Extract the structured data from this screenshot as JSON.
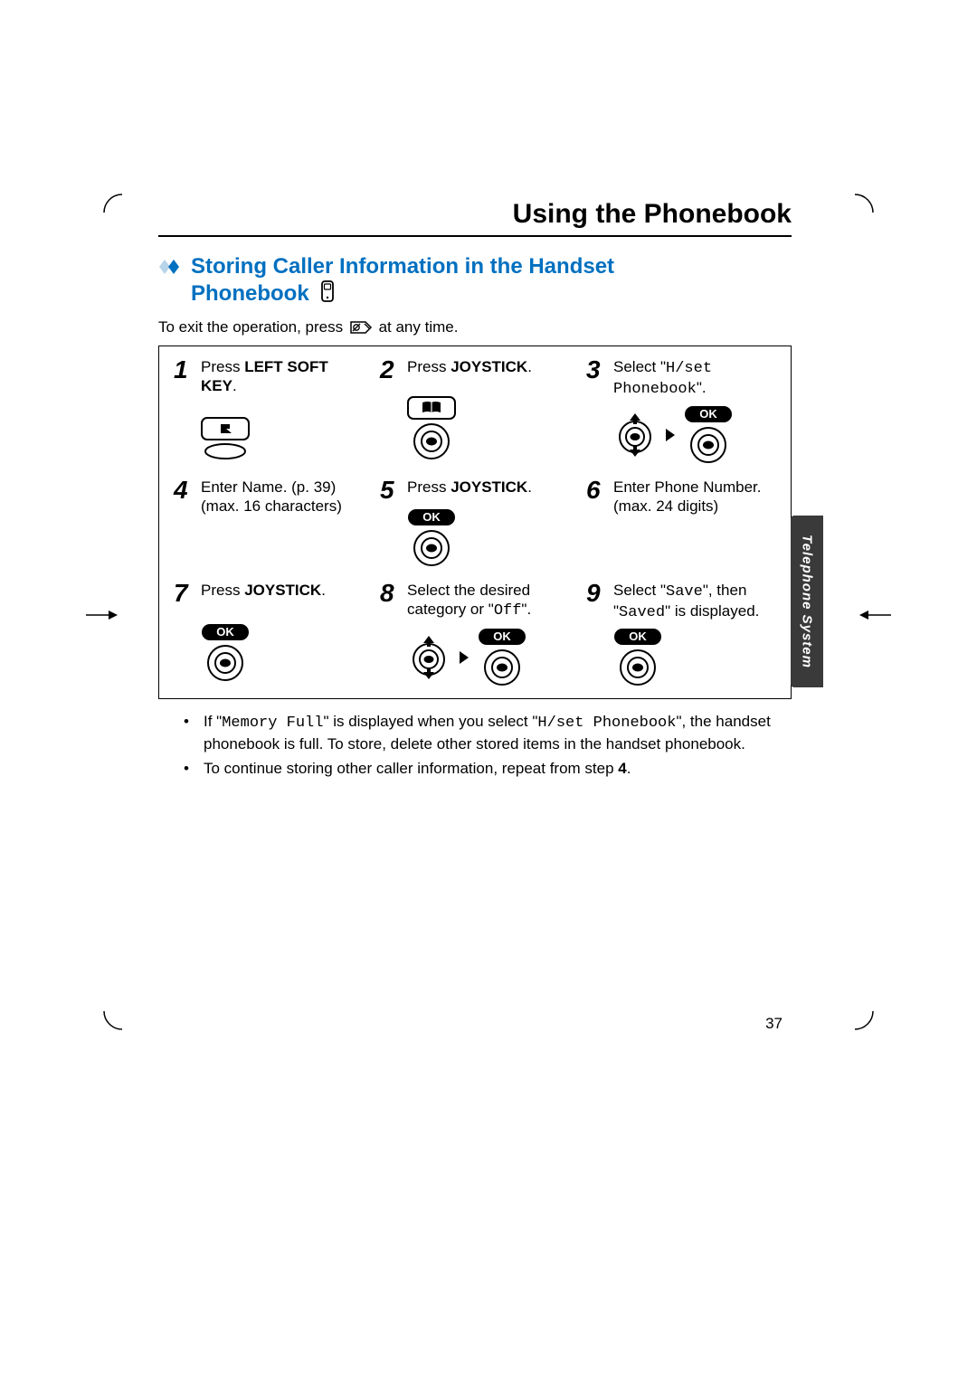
{
  "header": {
    "title": "Using the Phonebook"
  },
  "section": {
    "heading_line1": "Storing Caller Information in the Handset",
    "heading_line2": "Phonebook",
    "diamond_colors": [
      "#0070c0",
      "#b7d4ea"
    ],
    "exit_note_pre": "To exit the operation, press ",
    "exit_note_post": " at any time."
  },
  "steps": [
    {
      "n": "1",
      "text_parts": [
        {
          "t": "Press "
        },
        {
          "t": "LEFT SOFT KEY",
          "bold": true
        },
        {
          "t": "."
        }
      ],
      "icon": "softkey"
    },
    {
      "n": "2",
      "text_parts": [
        {
          "t": "Press "
        },
        {
          "t": "JOYSTICK",
          "bold": true
        },
        {
          "t": "."
        }
      ],
      "icon": "book_joy"
    },
    {
      "n": "3",
      "text_parts": [
        {
          "t": "Select \""
        },
        {
          "t": "H/set Phonebook",
          "mono": true
        },
        {
          "t": "\"."
        }
      ],
      "icon": "updown_ok"
    },
    {
      "n": "4",
      "text_parts": [
        {
          "t": "Enter Name. (p. 39) (max. 16 characters)"
        }
      ],
      "icon": ""
    },
    {
      "n": "5",
      "text_parts": [
        {
          "t": "Press "
        },
        {
          "t": "JOYSTICK",
          "bold": true
        },
        {
          "t": "."
        }
      ],
      "icon": "ok_joy"
    },
    {
      "n": "6",
      "text_parts": [
        {
          "t": "Enter Phone Number."
        },
        {
          "t": " (max. 24 digits)"
        }
      ],
      "icon": ""
    },
    {
      "n": "7",
      "text_parts": [
        {
          "t": "Press "
        },
        {
          "t": "JOYSTICK",
          "bold": true
        },
        {
          "t": "."
        }
      ],
      "icon": "ok_joy"
    },
    {
      "n": "8",
      "text_parts": [
        {
          "t": "Select the desired category or \""
        },
        {
          "t": "Off",
          "mono": true
        },
        {
          "t": "\"."
        }
      ],
      "icon": "updown_ok"
    },
    {
      "n": "9",
      "text_parts": [
        {
          "t": "Select \""
        },
        {
          "t": "Save",
          "mono": true
        },
        {
          "t": "\", then \""
        },
        {
          "t": "Saved",
          "mono": true
        },
        {
          "t": "\" is displayed."
        }
      ],
      "icon": "ok_joy"
    }
  ],
  "notes": [
    {
      "parts": [
        {
          "t": "If \""
        },
        {
          "t": "Memory Full",
          "mono": true
        },
        {
          "t": "\" is displayed when you select \""
        },
        {
          "t": "H/set Phonebook",
          "mono": true
        },
        {
          "t": "\", the handset phonebook is full. To store, delete other stored items in the handset phonebook."
        }
      ]
    },
    {
      "parts": [
        {
          "t": "To continue storing other caller information, repeat from step "
        },
        {
          "t": "4",
          "bold": true
        },
        {
          "t": "."
        }
      ]
    }
  ],
  "side_tab": "Telephone System",
  "page_number": "37",
  "ok_label": "OK"
}
